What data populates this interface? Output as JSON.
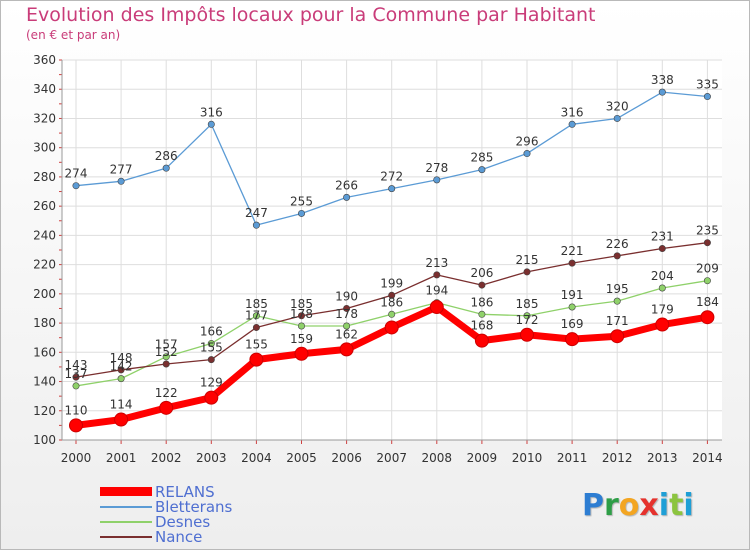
{
  "title": "Evolution des Impôts locaux pour la Commune par Habitant",
  "subtitle": "(en € et par an)",
  "logo": {
    "letters": [
      "P",
      "r",
      "o",
      "x",
      "i",
      "t",
      "i"
    ]
  },
  "chart_data": {
    "type": "line",
    "title": "Evolution des Impôts locaux pour la Commune par Habitant",
    "subtitle": "(en € et par an)",
    "xlabel": "",
    "ylabel": "",
    "x": [
      "2000",
      "2001",
      "2002",
      "2003",
      "2004",
      "2005",
      "2006",
      "2007",
      "2008",
      "2009",
      "2010",
      "2011",
      "2012",
      "2013",
      "2014"
    ],
    "ylim": [
      100,
      360
    ],
    "yticks": [
      100,
      120,
      140,
      160,
      180,
      200,
      220,
      240,
      260,
      280,
      300,
      320,
      340,
      360
    ],
    "grid": true,
    "legend_position": "bottom-left",
    "series": [
      {
        "name": "RELANS",
        "color": "#ff0000",
        "emphasis": true,
        "values": [
          110,
          114,
          122,
          129,
          155,
          159,
          162,
          177,
          191,
          168,
          172,
          169,
          171,
          179,
          184
        ],
        "labels": [
          "110",
          "114",
          "122",
          "129",
          "155",
          "159",
          "162",
          "",
          "",
          "168",
          "172",
          "169",
          "171",
          "179",
          "184"
        ]
      },
      {
        "name": "Bletterans",
        "color": "#5b9bd5",
        "emphasis": false,
        "values": [
          274,
          277,
          286,
          316,
          247,
          255,
          266,
          272,
          278,
          285,
          296,
          316,
          320,
          338,
          335
        ],
        "labels": [
          "274",
          "277",
          "286",
          "316",
          "247",
          "255",
          "266",
          "272",
          "278",
          "285",
          "296",
          "316",
          "320",
          "338",
          "335"
        ]
      },
      {
        "name": "Desnes",
        "color": "#8fd16a",
        "emphasis": false,
        "values": [
          137,
          142,
          157,
          166,
          185,
          178,
          178,
          186,
          194,
          186,
          185,
          191,
          195,
          204,
          209
        ],
        "labels": [
          "137",
          "142",
          "157",
          "166",
          "185",
          "178",
          "178",
          "186",
          "194",
          "186",
          "185",
          "191",
          "195",
          "204",
          "209"
        ]
      },
      {
        "name": "Nance",
        "color": "#7a2f2f",
        "emphasis": false,
        "values": [
          143,
          148,
          152,
          155,
          177,
          185,
          190,
          199,
          213,
          206,
          215,
          221,
          226,
          231,
          235
        ],
        "labels": [
          "143",
          "148",
          "152",
          "155",
          "177",
          "185",
          "190",
          "199",
          "213",
          "206",
          "215",
          "221",
          "226",
          "231",
          "235"
        ]
      }
    ]
  }
}
